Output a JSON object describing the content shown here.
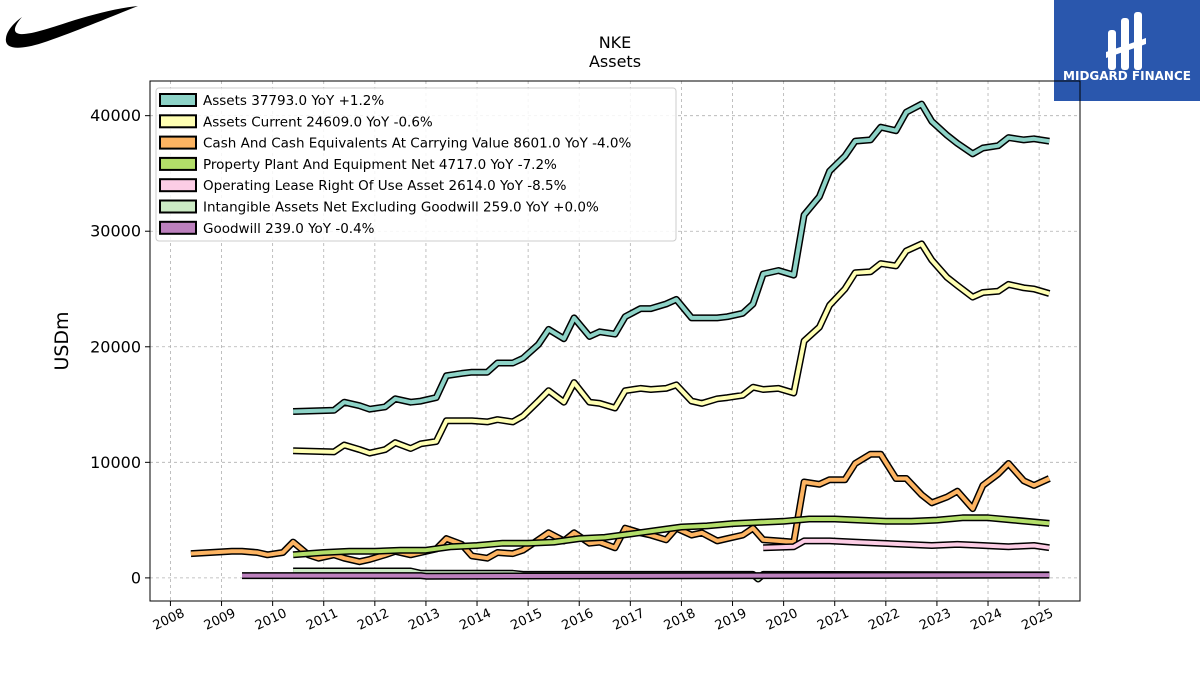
{
  "brand": {
    "logo_icon": "nike-swoosh-icon",
    "watermark_icon": "midgard-finance-logo-icon",
    "watermark_text": "MIDGARD FINANCE",
    "watermark_color": "#2a57ad"
  },
  "chart_data": {
    "type": "line",
    "title": "NKE",
    "subtitle": "Assets",
    "ylabel": "USDm",
    "xlabel": "",
    "xlim": [
      2007.6,
      2025.8
    ],
    "ylim": [
      -2000,
      43000
    ],
    "yticks": [
      0,
      10000,
      20000,
      30000,
      40000
    ],
    "xticks": [
      2008,
      2009,
      2010,
      2011,
      2012,
      2013,
      2014,
      2015,
      2016,
      2017,
      2018,
      2019,
      2020,
      2021,
      2022,
      2023,
      2024,
      2025
    ],
    "grid": true,
    "legend_position": "top-left",
    "series": [
      {
        "name": "Assets",
        "legend": "Assets  37793.0 YoY +1.2%",
        "color": "#8dd3c7",
        "points": [
          [
            2010.4,
            14400
          ],
          [
            2011.2,
            14500
          ],
          [
            2011.4,
            15200
          ],
          [
            2011.7,
            14900
          ],
          [
            2011.9,
            14600
          ],
          [
            2012.2,
            14800
          ],
          [
            2012.4,
            15500
          ],
          [
            2012.7,
            15200
          ],
          [
            2012.9,
            15300
          ],
          [
            2013.2,
            15600
          ],
          [
            2013.4,
            17500
          ],
          [
            2013.7,
            17700
          ],
          [
            2013.9,
            17800
          ],
          [
            2014.2,
            17800
          ],
          [
            2014.4,
            18600
          ],
          [
            2014.7,
            18600
          ],
          [
            2014.9,
            19000
          ],
          [
            2015.2,
            20200
          ],
          [
            2015.4,
            21500
          ],
          [
            2015.7,
            20700
          ],
          [
            2015.9,
            22500
          ],
          [
            2016.2,
            20900
          ],
          [
            2016.4,
            21300
          ],
          [
            2016.7,
            21100
          ],
          [
            2016.9,
            22600
          ],
          [
            2017.2,
            23300
          ],
          [
            2017.4,
            23300
          ],
          [
            2017.7,
            23700
          ],
          [
            2017.9,
            24100
          ],
          [
            2018.2,
            22500
          ],
          [
            2018.4,
            22500
          ],
          [
            2018.7,
            22500
          ],
          [
            2018.9,
            22600
          ],
          [
            2019.2,
            22900
          ],
          [
            2019.4,
            23700
          ],
          [
            2019.6,
            26300
          ],
          [
            2019.9,
            26600
          ],
          [
            2020.2,
            26200
          ],
          [
            2020.4,
            31400
          ],
          [
            2020.7,
            33000
          ],
          [
            2020.9,
            35200
          ],
          [
            2021.2,
            36500
          ],
          [
            2021.4,
            37800
          ],
          [
            2021.7,
            37900
          ],
          [
            2021.9,
            39000
          ],
          [
            2022.2,
            38700
          ],
          [
            2022.4,
            40300
          ],
          [
            2022.7,
            41000
          ],
          [
            2022.9,
            39500
          ],
          [
            2023.2,
            38300
          ],
          [
            2023.4,
            37600
          ],
          [
            2023.7,
            36700
          ],
          [
            2023.9,
            37200
          ],
          [
            2024.2,
            37400
          ],
          [
            2024.4,
            38100
          ],
          [
            2024.7,
            37900
          ],
          [
            2024.9,
            38000
          ],
          [
            2025.2,
            37793
          ]
        ]
      },
      {
        "name": "Assets Current",
        "legend": "Assets Current  24609.0 YoY -0.6%",
        "color": "#ffffb3",
        "points": [
          [
            2010.4,
            11000
          ],
          [
            2011.2,
            10900
          ],
          [
            2011.4,
            11500
          ],
          [
            2011.7,
            11100
          ],
          [
            2011.9,
            10800
          ],
          [
            2012.2,
            11100
          ],
          [
            2012.4,
            11700
          ],
          [
            2012.7,
            11200
          ],
          [
            2012.9,
            11600
          ],
          [
            2013.2,
            11800
          ],
          [
            2013.4,
            13600
          ],
          [
            2013.7,
            13600
          ],
          [
            2013.9,
            13600
          ],
          [
            2014.2,
            13500
          ],
          [
            2014.4,
            13700
          ],
          [
            2014.7,
            13500
          ],
          [
            2014.9,
            14000
          ],
          [
            2015.2,
            15300
          ],
          [
            2015.4,
            16200
          ],
          [
            2015.7,
            15200
          ],
          [
            2015.9,
            16900
          ],
          [
            2016.2,
            15200
          ],
          [
            2016.4,
            15100
          ],
          [
            2016.7,
            14700
          ],
          [
            2016.9,
            16200
          ],
          [
            2017.2,
            16400
          ],
          [
            2017.4,
            16300
          ],
          [
            2017.7,
            16400
          ],
          [
            2017.9,
            16700
          ],
          [
            2018.2,
            15300
          ],
          [
            2018.4,
            15100
          ],
          [
            2018.7,
            15500
          ],
          [
            2018.9,
            15600
          ],
          [
            2019.2,
            15800
          ],
          [
            2019.4,
            16500
          ],
          [
            2019.6,
            16300
          ],
          [
            2019.9,
            16400
          ],
          [
            2020.2,
            16000
          ],
          [
            2020.4,
            20500
          ],
          [
            2020.7,
            21700
          ],
          [
            2020.9,
            23600
          ],
          [
            2021.2,
            25000
          ],
          [
            2021.4,
            26400
          ],
          [
            2021.7,
            26500
          ],
          [
            2021.9,
            27200
          ],
          [
            2022.2,
            27000
          ],
          [
            2022.4,
            28300
          ],
          [
            2022.7,
            28900
          ],
          [
            2022.9,
            27500
          ],
          [
            2023.2,
            26000
          ],
          [
            2023.4,
            25300
          ],
          [
            2023.7,
            24300
          ],
          [
            2023.9,
            24700
          ],
          [
            2024.2,
            24800
          ],
          [
            2024.4,
            25400
          ],
          [
            2024.7,
            25100
          ],
          [
            2024.9,
            25000
          ],
          [
            2025.2,
            24609
          ]
        ]
      },
      {
        "name": "Cash And Cash Equivalents At Carrying Value",
        "legend": "Cash And Cash Equivalents At Carrying Value  8601.0 YoY -4.0%",
        "color": "#fdb462",
        "points": [
          [
            2008.4,
            2100
          ],
          [
            2009.2,
            2300
          ],
          [
            2009.4,
            2300
          ],
          [
            2009.7,
            2200
          ],
          [
            2009.9,
            2000
          ],
          [
            2010.2,
            2200
          ],
          [
            2010.4,
            3100
          ],
          [
            2010.7,
            2000
          ],
          [
            2010.9,
            1700
          ],
          [
            2011.2,
            2000
          ],
          [
            2011.4,
            1700
          ],
          [
            2011.7,
            1400
          ],
          [
            2011.9,
            1600
          ],
          [
            2012.2,
            2000
          ],
          [
            2012.4,
            2300
          ],
          [
            2012.7,
            2000
          ],
          [
            2012.9,
            2200
          ],
          [
            2013.2,
            2500
          ],
          [
            2013.4,
            3400
          ],
          [
            2013.7,
            2900
          ],
          [
            2013.9,
            1900
          ],
          [
            2014.2,
            1700
          ],
          [
            2014.4,
            2200
          ],
          [
            2014.7,
            2100
          ],
          [
            2014.9,
            2400
          ],
          [
            2015.2,
            3300
          ],
          [
            2015.4,
            3900
          ],
          [
            2015.7,
            3200
          ],
          [
            2015.9,
            3900
          ],
          [
            2016.2,
            3000
          ],
          [
            2016.4,
            3100
          ],
          [
            2016.7,
            2600
          ],
          [
            2016.9,
            4300
          ],
          [
            2017.2,
            3900
          ],
          [
            2017.4,
            3700
          ],
          [
            2017.7,
            3300
          ],
          [
            2017.9,
            4300
          ],
          [
            2018.2,
            3700
          ],
          [
            2018.4,
            3900
          ],
          [
            2018.7,
            3200
          ],
          [
            2018.9,
            3400
          ],
          [
            2019.2,
            3700
          ],
          [
            2019.4,
            4300
          ],
          [
            2019.6,
            3300
          ],
          [
            2019.9,
            3200
          ],
          [
            2020.2,
            3100
          ],
          [
            2020.4,
            8300
          ],
          [
            2020.7,
            8100
          ],
          [
            2020.9,
            8500
          ],
          [
            2021.2,
            8500
          ],
          [
            2021.4,
            9900
          ],
          [
            2021.7,
            10700
          ],
          [
            2021.9,
            10700
          ],
          [
            2022.2,
            8600
          ],
          [
            2022.4,
            8600
          ],
          [
            2022.7,
            7200
          ],
          [
            2022.9,
            6500
          ],
          [
            2023.2,
            7000
          ],
          [
            2023.4,
            7500
          ],
          [
            2023.7,
            6000
          ],
          [
            2023.9,
            8000
          ],
          [
            2024.2,
            9000
          ],
          [
            2024.4,
            9900
          ],
          [
            2024.7,
            8400
          ],
          [
            2024.9,
            8000
          ],
          [
            2025.2,
            8601
          ]
        ]
      },
      {
        "name": "Property Plant And Equipment Net",
        "legend": "Property Plant And Equipment Net  4717.0 YoY -7.2%",
        "color": "#b3de69",
        "points": [
          [
            2010.4,
            2000
          ],
          [
            2011.0,
            2200
          ],
          [
            2011.5,
            2300
          ],
          [
            2012.0,
            2300
          ],
          [
            2012.5,
            2400
          ],
          [
            2013.0,
            2400
          ],
          [
            2013.5,
            2700
          ],
          [
            2014.0,
            2800
          ],
          [
            2014.5,
            3000
          ],
          [
            2015.0,
            3000
          ],
          [
            2015.5,
            3100
          ],
          [
            2016.0,
            3400
          ],
          [
            2016.5,
            3500
          ],
          [
            2017.0,
            3800
          ],
          [
            2017.5,
            4100
          ],
          [
            2018.0,
            4400
          ],
          [
            2018.5,
            4500
          ],
          [
            2019.0,
            4700
          ],
          [
            2019.5,
            4800
          ],
          [
            2020.0,
            4900
          ],
          [
            2020.5,
            5100
          ],
          [
            2021.0,
            5100
          ],
          [
            2021.5,
            5000
          ],
          [
            2022.0,
            4900
          ],
          [
            2022.5,
            4900
          ],
          [
            2023.0,
            5000
          ],
          [
            2023.5,
            5200
          ],
          [
            2024.0,
            5200
          ],
          [
            2024.5,
            5000
          ],
          [
            2025.2,
            4717
          ]
        ]
      },
      {
        "name": "Operating Lease Right Of Use Asset",
        "legend": "Operating Lease Right Of Use Asset  2614.0 YoY -8.5%",
        "color": "#fccde5",
        "points": [
          [
            2019.6,
            2600
          ],
          [
            2020.2,
            2700
          ],
          [
            2020.4,
            3200
          ],
          [
            2020.9,
            3200
          ],
          [
            2021.4,
            3100
          ],
          [
            2021.9,
            3000
          ],
          [
            2022.4,
            2900
          ],
          [
            2022.9,
            2800
          ],
          [
            2023.4,
            2900
          ],
          [
            2023.9,
            2800
          ],
          [
            2024.4,
            2700
          ],
          [
            2024.9,
            2800
          ],
          [
            2025.2,
            2614
          ]
        ]
      },
      {
        "name": "Intangible Assets Net Excluding Goodwill",
        "legend": "Intangible Assets Net Excluding Goodwill  259.0 YoY +0.0%",
        "color": "#ccebc5",
        "points": [
          [
            2010.4,
            600
          ],
          [
            2012.7,
            600
          ],
          [
            2012.9,
            400
          ],
          [
            2014.7,
            400
          ],
          [
            2014.9,
            300
          ],
          [
            2019.4,
            300
          ],
          [
            2019.5,
            -100
          ],
          [
            2019.6,
            300
          ],
          [
            2025.2,
            259
          ]
        ]
      },
      {
        "name": "Goodwill",
        "legend": "Goodwill  239.0 YoY -0.4%",
        "color": "#bc80bd",
        "points": [
          [
            2009.4,
            200
          ],
          [
            2012.9,
            200
          ],
          [
            2013.0,
            150
          ],
          [
            2025.2,
            239
          ]
        ]
      }
    ]
  }
}
